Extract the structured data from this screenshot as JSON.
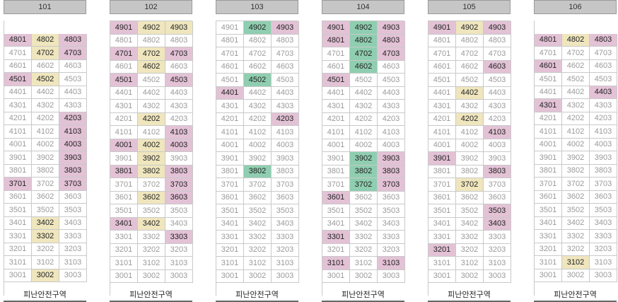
{
  "footer_label": "피난안전구역",
  "buildings": [
    {
      "name": "101",
      "start_floor": 48,
      "colors": {
        "4801": "pink",
        "4802": "yellow",
        "4803": "pink",
        "4702": "yellow",
        "4703": "pink",
        "4501": "pink",
        "4502": "yellow",
        "4203": "pink",
        "4103": "pink",
        "4003": "pink",
        "3903": "pink",
        "3803": "pink",
        "3701": "pink",
        "3703": "pink",
        "3402": "yellow",
        "3302": "yellow",
        "3002": "yellow"
      }
    },
    {
      "name": "102",
      "start_floor": 49,
      "colors": {
        "4901": "pink",
        "4902": "yellow",
        "4903": "yellow",
        "4701": "pink",
        "4702": "yellow",
        "4703": "pink",
        "4602": "yellow",
        "4501": "pink",
        "4503": "pink",
        "4202": "yellow",
        "4103": "pink",
        "4001": "pink",
        "4002": "yellow",
        "4003": "pink",
        "3902": "yellow",
        "3801": "pink",
        "3802": "yellow",
        "3803": "pink",
        "3703": "pink",
        "3602": "yellow",
        "3603": "pink",
        "3401": "pink",
        "3402": "yellow",
        "3303": "pink"
      }
    },
    {
      "name": "103",
      "start_floor": 49,
      "colors": {
        "4902": "green",
        "4903": "pink",
        "4502": "green",
        "4401": "pink",
        "4203": "pink",
        "3802": "green"
      }
    },
    {
      "name": "104",
      "start_floor": 49,
      "colors": {
        "4901": "pink",
        "4902": "green",
        "4903": "pink",
        "4801": "pink",
        "4802": "green",
        "4803": "pink",
        "4702": "green",
        "4703": "pink",
        "4602": "green",
        "4501": "pink",
        "3902": "green",
        "3903": "pink",
        "3802": "green",
        "3803": "pink",
        "3702": "green",
        "3703": "pink",
        "3601": "pink",
        "3301": "pink",
        "3101": "pink",
        "3103": "pink"
      }
    },
    {
      "name": "105",
      "start_floor": 49,
      "colors": {
        "4901": "pink",
        "4902": "yellow",
        "4903": "pink",
        "4603": "pink",
        "4402": "yellow",
        "4202": "yellow",
        "4103": "pink",
        "3901": "pink",
        "3803": "pink",
        "3702": "yellow",
        "3503": "pink",
        "3403": "pink",
        "3201": "pink"
      }
    },
    {
      "name": "106",
      "start_floor": 48,
      "colors": {
        "4801": "pink",
        "4802": "yellow",
        "4803": "pink",
        "4601": "pink",
        "4403": "pink",
        "4301": "pink",
        "3102": "yellow"
      }
    }
  ]
}
